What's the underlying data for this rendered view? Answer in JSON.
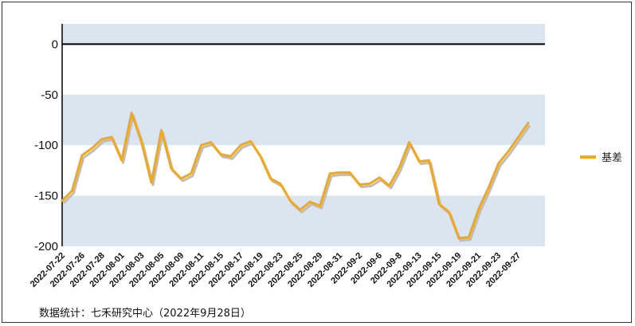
{
  "chart_data": {
    "type": "line",
    "title": "",
    "xlabel": "",
    "ylabel": "",
    "ylim": [
      -200,
      20
    ],
    "y_ticks": [
      0,
      -50,
      -100,
      -150,
      -200
    ],
    "band_color": "#dae5f0",
    "zero_line_color": "#000000",
    "x_tick_labels": [
      "2022-07-22",
      "2022-07-26",
      "2022-07-28",
      "2022-08-01",
      "2022-08-03",
      "2022-08-05",
      "2022-08-09",
      "2022-08-11",
      "2022-08-15",
      "2022-08-17",
      "2022-08-19",
      "2022-08-23",
      "2022-08-25",
      "2022-08-29",
      "2022-08-31",
      "2022-09-2",
      "2022-09-6",
      "2022-09-8",
      "2022-09-13",
      "2022-09-15",
      "2022-09-19",
      "2022-09-21",
      "2022-09-23",
      "2022-09-27"
    ],
    "series": [
      {
        "name": "基差",
        "color": "#f0a81e",
        "values": [
          -155,
          -145,
          -110,
          -103,
          -94,
          -92,
          -115,
          -68,
          -97,
          -137,
          -85,
          -123,
          -133,
          -128,
          -100,
          -97,
          -109,
          -111,
          -100,
          -96,
          -111,
          -133,
          -138,
          -155,
          -164,
          -156,
          -160,
          -128,
          -127,
          -127,
          -139,
          -138,
          -132,
          -140,
          -122,
          -97,
          -116,
          -115,
          -158,
          -166,
          -192,
          -191,
          -163,
          -142,
          -118,
          -106,
          -92,
          -78
        ]
      }
    ],
    "legend": {
      "position": "right",
      "entries": [
        "基差"
      ]
    }
  },
  "source_note": "数据统计：七禾研究中心（2022年9月28日）"
}
